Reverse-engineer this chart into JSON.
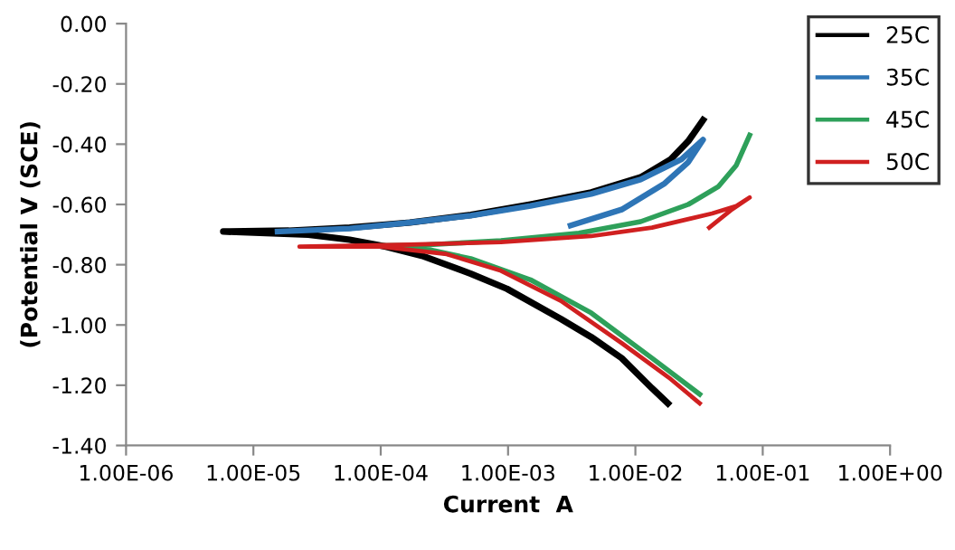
{
  "chart_data": {
    "type": "line",
    "xlabel": "Current  A",
    "ylabel": "(Potential V (SCE)",
    "log": "x",
    "xlim": [
      1e-06,
      1
    ],
    "xticks": [
      {
        "value": 1e-06,
        "label": "1.00E-06"
      },
      {
        "value": 1e-05,
        "label": "1.00E-05"
      },
      {
        "value": 0.0001,
        "label": "1.00E-04"
      },
      {
        "value": 0.001,
        "label": "1.00E-03"
      },
      {
        "value": 0.01,
        "label": "1.00E-02"
      },
      {
        "value": 0.1,
        "label": "1.00E-01"
      },
      {
        "value": 1,
        "label": "1.00E+00"
      }
    ],
    "ylim": [
      -1.4,
      0
    ],
    "yticks": [
      {
        "value": -1.4,
        "label": "-1.40"
      },
      {
        "value": -1.2,
        "label": "-1.20"
      },
      {
        "value": -1.0,
        "label": "-1.00"
      },
      {
        "value": -0.8,
        "label": "-0.80"
      },
      {
        "value": -0.6,
        "label": "-0.60"
      },
      {
        "value": -0.4,
        "label": "-0.40"
      },
      {
        "value": -0.2,
        "label": "-0.20"
      },
      {
        "value": 0,
        "label": "0.00"
      }
    ],
    "grid": false,
    "legend": "top right",
    "marker": "none",
    "line_style": "solid",
    "series": [
      {
        "name": "25C",
        "color": "#000000",
        "x": [
          0.034,
          0.026,
          0.019,
          0.011,
          0.0045,
          0.0015,
          0.00051,
          0.00017,
          5.7e-05,
          1.9e-05,
          5.8e-06,
          2.7e-05,
          5.7e-05,
          0.00011,
          0.00021,
          0.00051,
          0.00098,
          0.0026,
          0.0045,
          0.0078,
          0.0135,
          0.018
        ],
        "values": [
          -0.32,
          -0.39,
          -0.45,
          -0.51,
          -0.56,
          -0.6,
          -0.635,
          -0.66,
          -0.677,
          -0.687,
          -0.69,
          -0.7,
          -0.717,
          -0.74,
          -0.77,
          -0.83,
          -0.88,
          -0.98,
          -1.04,
          -1.11,
          -1.21,
          -1.26
        ]
      },
      {
        "name": "35C",
        "color": "#2e75b6",
        "x": [
          0.0031,
          0.0078,
          0.017,
          0.026,
          0.034,
          0.023,
          0.011,
          0.0045,
          0.0015,
          0.00051,
          0.00017,
          5.7e-05,
          1.55e-05
        ],
        "values": [
          -0.67,
          -0.617,
          -0.53,
          -0.46,
          -0.385,
          -0.45,
          -0.517,
          -0.565,
          -0.605,
          -0.637,
          -0.66,
          -0.68,
          -0.69
        ]
      },
      {
        "name": "45C",
        "color": "#2ea05a",
        "x": [
          0.079,
          0.062,
          0.045,
          0.026,
          0.011,
          0.0036,
          0.00088,
          0.00021,
          0.0001,
          0.00021,
          0.00051,
          0.0015,
          0.0045,
          0.0135,
          0.032
        ],
        "values": [
          -0.37,
          -0.47,
          -0.54,
          -0.6,
          -0.657,
          -0.695,
          -0.72,
          -0.735,
          -0.737,
          -0.745,
          -0.78,
          -0.85,
          -0.96,
          -1.11,
          -1.23
        ]
      },
      {
        "name": "50C",
        "color": "#d02020",
        "x": [
          0.038,
          0.056,
          0.079,
          0.062,
          0.04,
          0.0135,
          0.0045,
          0.00088,
          0.00017,
          5.7e-05,
          2.3e-05,
          0.0001,
          0.00033,
          0.00088,
          0.0026,
          0.0078,
          0.019,
          0.032
        ],
        "values": [
          -0.677,
          -0.62,
          -0.577,
          -0.605,
          -0.63,
          -0.677,
          -0.705,
          -0.725,
          -0.733,
          -0.737,
          -0.74,
          -0.74,
          -0.765,
          -0.82,
          -0.92,
          -1.06,
          -1.18,
          -1.26
        ]
      }
    ]
  }
}
